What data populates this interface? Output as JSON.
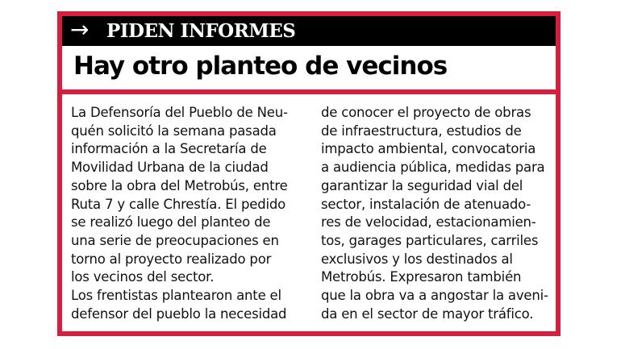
{
  "kicker": {
    "icon": "arrow-right-icon",
    "text": "PIDEN INFORMES"
  },
  "title": "Hay otro planteo de vecinos",
  "colors": {
    "accent": "#d81e3c",
    "kicker_bg": "#000000"
  },
  "body": {
    "left_lines": [
      "La Defensoría del Pueblo de Neu-",
      "quén solicitó la semana pasada",
      "información a la Secretaría de",
      "Movilidad Urbana de la ciudad",
      "sobre la obra del Metrobús, entre",
      "Ruta 7 y calle Chrestía. El pedido",
      "se realizó luego del planteo de",
      "una serie de preocupaciones en",
      "torno al proyecto realizado por",
      "los vecinos del sector.",
      "Los frentistas plantearon ante el",
      "defensor del pueblo la necesidad"
    ],
    "right_lines": [
      "de conocer el proyecto de obras",
      "de infraestructura, estudios de",
      "impacto ambiental, convocatoria",
      "a audiencia pública, medidas para",
      "garantizar la seguridad vial del",
      "sector, instalación de atenuado-",
      "res de velocidad, estacionamien-",
      "tos, garages particulares, carriles",
      "exclusivos y los destinados al",
      "Metrobús. Expresaron también",
      "que la obra va a angostar la aveni-",
      "da en el sector de mayor tráfico."
    ]
  }
}
